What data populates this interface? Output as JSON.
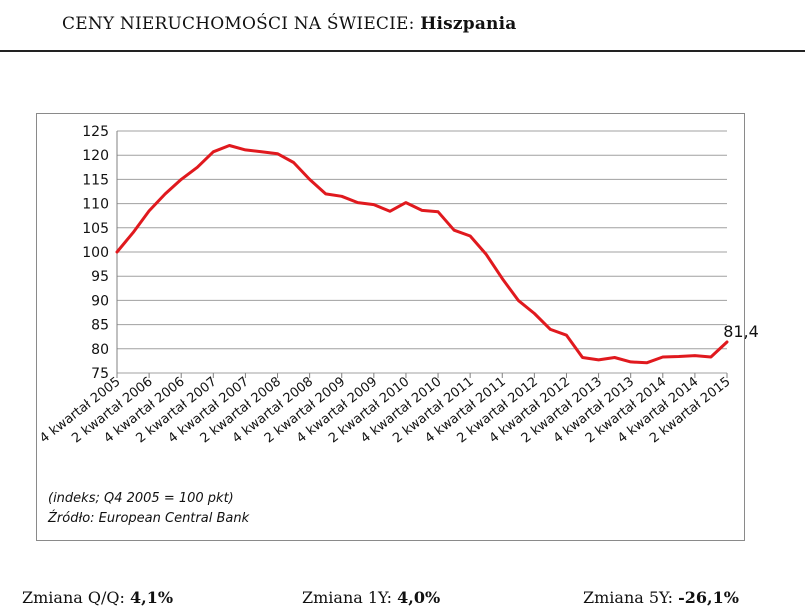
{
  "header": {
    "prefix": "CENY NIERUCHOMOŚCI NA ŚWIECIE: ",
    "country": "Hiszpania"
  },
  "chart_data": {
    "type": "line",
    "title": "",
    "xlabel": "",
    "ylabel": "",
    "ylim": [
      75,
      125
    ],
    "yticks": [
      75,
      80,
      85,
      90,
      95,
      100,
      105,
      110,
      115,
      120,
      125
    ],
    "grid": true,
    "x_tick_labels": [
      "4 kwartał 2005",
      "2 kwartał 2006",
      "4 kwartał 2006",
      "2 kwartał 2007",
      "4 kwartał 2007",
      "2 kwartał 2008",
      "4 kwartał 2008",
      "2 kwartał 2009",
      "4 kwartał 2009",
      "2 kwartał 2010",
      "4 kwartał 2010",
      "2 kwartał 2011",
      "4 kwartał 2011",
      "2 kwartał 2012",
      "4 kwartał 2012",
      "2 kwartał 2013",
      "4 kwartał 2013",
      "2 kwartał 2014",
      "4 kwartał 2014",
      "2 kwartał 2015"
    ],
    "series": [
      {
        "color": "#e0191e",
        "values": [
          100.0,
          104.0,
          108.5,
          112.0,
          115.0,
          117.5,
          120.7,
          122.0,
          121.1,
          120.7,
          120.3,
          118.5,
          115.0,
          112.0,
          111.5,
          110.2,
          109.8,
          108.4,
          110.2,
          108.6,
          108.3,
          104.5,
          103.3,
          99.5,
          94.5,
          90.0,
          87.3,
          84.0,
          82.8,
          78.2,
          77.7,
          78.2,
          77.3,
          77.1,
          78.3,
          78.4,
          78.6,
          78.3,
          81.4
        ]
      }
    ],
    "annotation": {
      "text": "81,4",
      "index": 38
    }
  },
  "notes": {
    "line1": "(indeks; Q4 2005 = 100 pkt)",
    "line2": "Źródło: European Central Bank"
  },
  "stats": [
    {
      "label": "Zmiana Q/Q: ",
      "value": "4,1%"
    },
    {
      "label": "Zmiana 1Y: ",
      "value": "4,0%"
    },
    {
      "label": "Zmiana 5Y: ",
      "value": "-26,1%"
    }
  ]
}
